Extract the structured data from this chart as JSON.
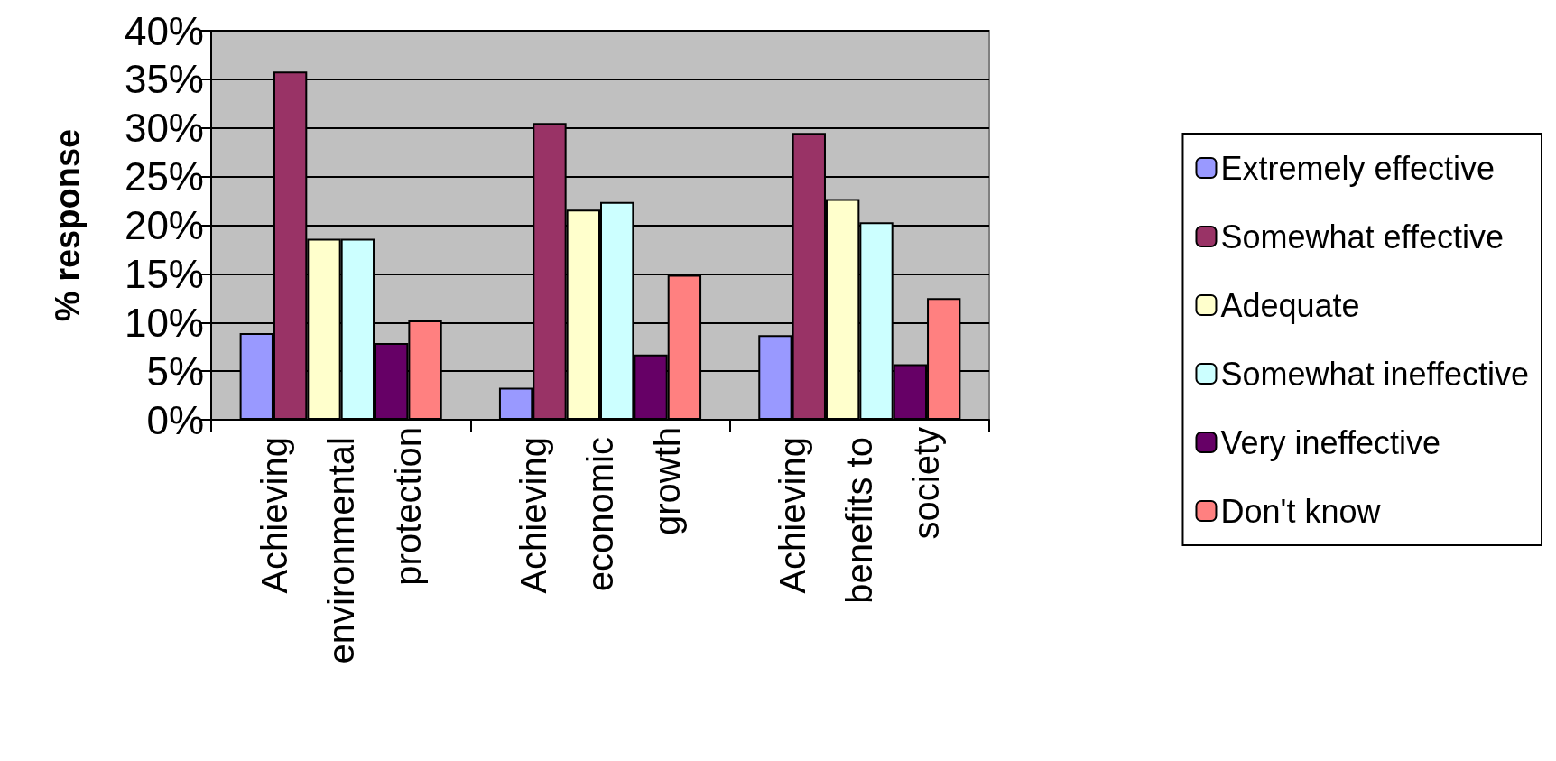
{
  "chart_data": {
    "type": "bar",
    "ylabel": "% response",
    "categories": [
      "Achieving environmental protection",
      "Achieving economic growth",
      "Achieving benefits to society"
    ],
    "series": [
      {
        "name": "Extremely effective",
        "color": "#9999ff",
        "values": [
          8.9,
          3.3,
          8.7
        ]
      },
      {
        "name": "Somewhat effective",
        "color": "#993366",
        "values": [
          35.8,
          30.5,
          29.5
        ]
      },
      {
        "name": "Adequate",
        "color": "#ffffcc",
        "values": [
          18.6,
          21.6,
          22.7
        ]
      },
      {
        "name": "Somewhat ineffective",
        "color": "#ccffff",
        "values": [
          18.6,
          22.4,
          20.3
        ]
      },
      {
        "name": "Very ineffective",
        "color": "#660066",
        "values": [
          7.9,
          6.7,
          5.7
        ]
      },
      {
        "name": "Don't know",
        "color": "#ff8080",
        "values": [
          10.2,
          14.9,
          12.5
        ]
      }
    ],
    "ylim": [
      0,
      40
    ],
    "yticks": [
      {
        "value": 0,
        "label": "0%"
      },
      {
        "value": 5,
        "label": "5%"
      },
      {
        "value": 10,
        "label": "10%"
      },
      {
        "value": 15,
        "label": "15%"
      },
      {
        "value": 20,
        "label": "20%"
      },
      {
        "value": 25,
        "label": "25%"
      },
      {
        "value": 30,
        "label": "30%"
      },
      {
        "value": 35,
        "label": "35%"
      },
      {
        "value": 40,
        "label": "40%"
      }
    ],
    "grid": "y",
    "legend": "right"
  }
}
